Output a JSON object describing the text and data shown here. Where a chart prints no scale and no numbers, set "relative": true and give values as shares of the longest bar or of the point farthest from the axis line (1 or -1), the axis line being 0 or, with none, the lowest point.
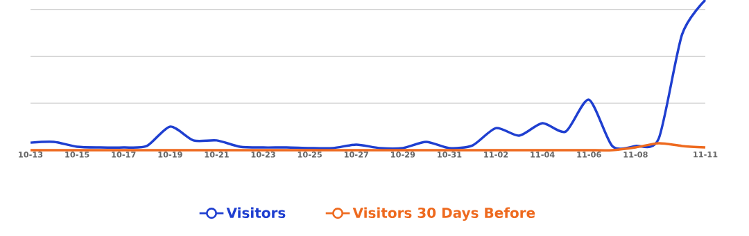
{
  "chart_data": {
    "type": "line",
    "relative": true,
    "grid": "y",
    "legend": "bottom",
    "marker": "none",
    "line_style": "solid",
    "categories": [
      "10-13",
      null,
      "10-15",
      null,
      "10-17",
      null,
      "10-19",
      null,
      "10-21",
      null,
      "10-23",
      null,
      "10-25",
      null,
      "10-27",
      null,
      "10-29",
      null,
      "10-31",
      null,
      "11-02",
      null,
      "11-04",
      null,
      "11-06",
      null,
      "11-08",
      null,
      null,
      "11-11"
    ],
    "series": [
      {
        "name": "Visitors",
        "color": "#1f3fd0",
        "values": [
          0.05,
          0.055,
          0.023,
          0.018,
          0.018,
          0.028,
          0.157,
          0.065,
          0.065,
          0.023,
          0.018,
          0.018,
          0.014,
          0.014,
          0.037,
          0.014,
          0.014,
          0.055,
          0.014,
          0.032,
          0.147,
          0.097,
          0.18,
          0.124,
          0.336,
          0.028,
          0.028,
          0.078,
          0.77,
          1
        ]
      },
      {
        "name": "Visitors 30 Days Before",
        "color": "#ee6a1f",
        "values": [
          0,
          0,
          0,
          0,
          0,
          0,
          0,
          0,
          0,
          0,
          0,
          0,
          0,
          0,
          0,
          0,
          0,
          0,
          0,
          0,
          0,
          0,
          0,
          0,
          0,
          0,
          0.018,
          0.046,
          0.028,
          0.018
        ]
      }
    ]
  }
}
